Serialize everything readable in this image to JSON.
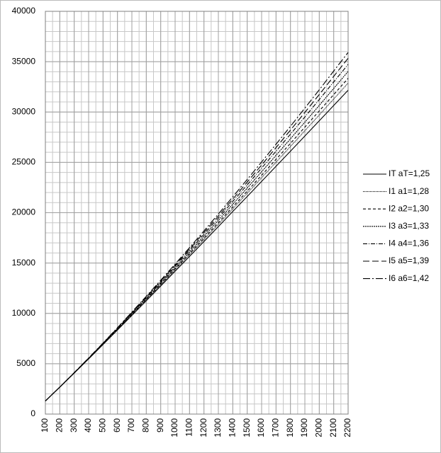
{
  "chart_data": {
    "type": "line",
    "x": [
      100,
      200,
      300,
      400,
      500,
      600,
      700,
      800,
      900,
      1000,
      1100,
      1200,
      1300,
      1400,
      1500,
      1600,
      1700,
      1800,
      1900,
      2000,
      2100,
      2200
    ],
    "series": [
      {
        "name": "IT aT=1,25",
        "color": "#000000",
        "dash": "none",
        "values": [
          1300,
          2670,
          4070,
          5480,
          6910,
          8350,
          9800,
          11260,
          12720,
          14190,
          15660,
          17140,
          18620,
          20120,
          21610,
          23110,
          24610,
          26110,
          27620,
          29130,
          30650,
          32160
        ]
      },
      {
        "name": "I1 a1=1,28",
        "color": "#000000",
        "dash": "1 1",
        "values": [
          1300,
          2670,
          4080,
          5500,
          6940,
          8390,
          9860,
          11340,
          12830,
          14320,
          15820,
          17340,
          18850,
          20390,
          21930,
          23470,
          25020,
          26580,
          28140,
          29710,
          31290,
          32870
        ]
      },
      {
        "name": "I2 a2=1,30",
        "color": "#000000",
        "dash": "4 3",
        "values": [
          1300,
          2680,
          4080,
          5510,
          6960,
          8420,
          9900,
          11400,
          12900,
          14420,
          15940,
          17470,
          19010,
          20580,
          22140,
          23720,
          25300,
          26890,
          28500,
          30110,
          31730,
          33350
        ]
      },
      {
        "name": "I3 a3=1,33",
        "color": "#000000",
        "dash": "2 1",
        "values": [
          1300,
          2680,
          4090,
          5530,
          6990,
          8470,
          9960,
          11480,
          13000,
          14540,
          16090,
          17660,
          19240,
          20840,
          22450,
          24070,
          25700,
          27340,
          28990,
          30660,
          32340,
          34030
        ]
      },
      {
        "name": "I4 a4=1,36",
        "color": "#000000",
        "dash": "6 2 1 2",
        "values": [
          1300,
          2680,
          4100,
          5540,
          7020,
          8510,
          10020,
          11560,
          13110,
          14680,
          16260,
          17860,
          19470,
          21120,
          22760,
          24430,
          26110,
          27800,
          29510,
          31240,
          32990,
          34730
        ]
      },
      {
        "name": "I5 a5=1,39",
        "color": "#000000",
        "dash": "9 4",
        "values": [
          1300,
          2680,
          4110,
          5560,
          7040,
          8550,
          10080,
          11630,
          13200,
          14790,
          16400,
          18030,
          19670,
          21350,
          23040,
          24740,
          26470,
          28200,
          29960,
          31740,
          33540,
          35340
        ]
      },
      {
        "name": "I6 a6=1,42",
        "color": "#000000",
        "dash": "10 3 2 3",
        "values": [
          1300,
          2690,
          4120,
          5570,
          7060,
          8580,
          10130,
          11700,
          13290,
          14900,
          16530,
          18190,
          19870,
          21580,
          23300,
          25040,
          26800,
          28580,
          30390,
          32210,
          34070,
          35920
        ]
      }
    ],
    "xlim": [
      100,
      2200
    ],
    "xticks": [
      100,
      200,
      300,
      400,
      500,
      600,
      700,
      800,
      900,
      1000,
      1100,
      1200,
      1300,
      1400,
      1500,
      1600,
      1700,
      1800,
      1900,
      2000,
      2100,
      2200
    ],
    "ylim": [
      0,
      40000
    ],
    "yticks": [
      0,
      5000,
      10000,
      15000,
      20000,
      25000,
      30000,
      35000,
      40000
    ],
    "grid": true,
    "minor_grid": {
      "x": 50,
      "y": 1000
    },
    "legend": "right"
  }
}
